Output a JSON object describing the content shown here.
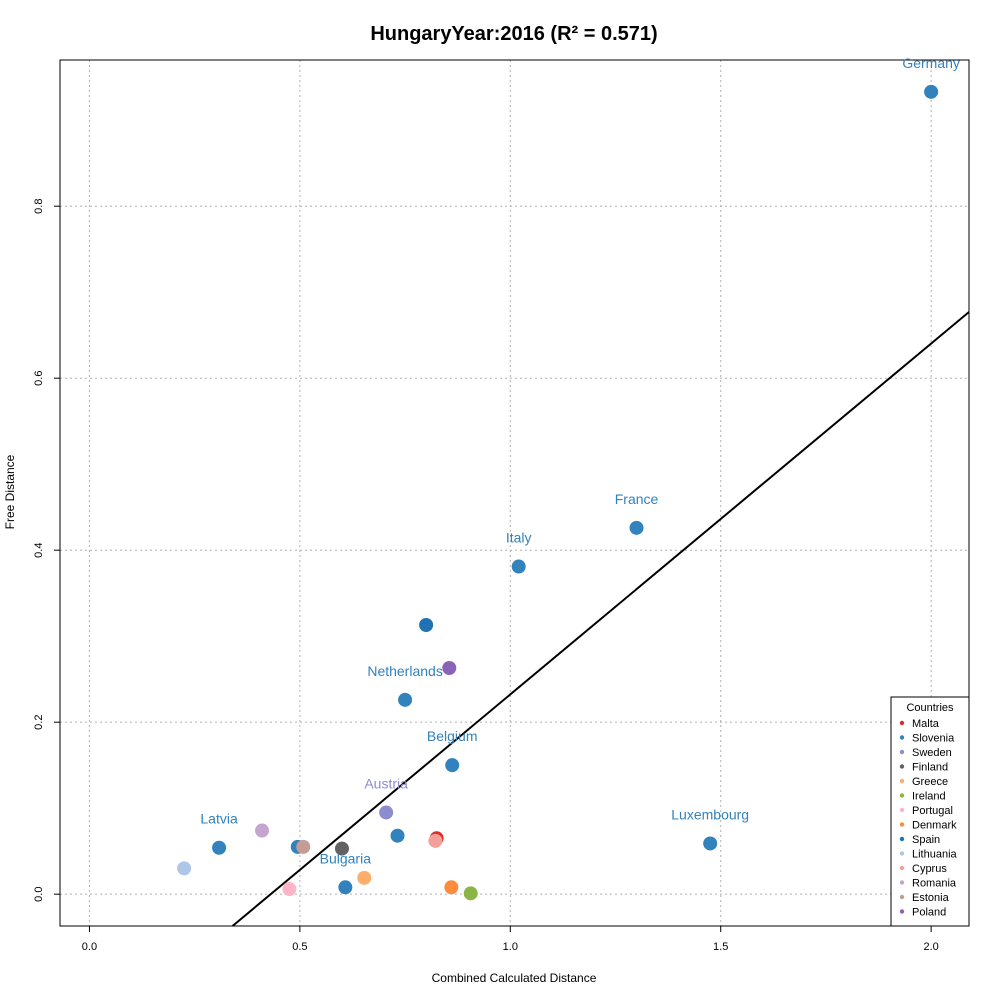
{
  "chart_data": {
    "type": "scatter",
    "title": "HungaryYear:2016 (R² = 0.571)",
    "xlabel": "Combined Calculated Distance",
    "ylabel": "Free Distance",
    "xlim": [
      -0.07,
      2.09
    ],
    "ylim": [
      -0.037,
      0.97
    ],
    "x_ticks": [
      0.0,
      0.5,
      1.0,
      1.5,
      2.0
    ],
    "x_tick_labels": [
      "0.0",
      "0.5",
      "1.0",
      "1.5",
      "2.0"
    ],
    "y_ticks": [
      0.0,
      0.2,
      0.4,
      0.6,
      0.8
    ],
    "y_tick_labels": [
      "0.0",
      "0.2",
      "0.4",
      "0.6",
      "0.8"
    ],
    "grid": true,
    "regression_line": {
      "x": [
        0.34,
        2.09
      ],
      "y": [
        -0.037,
        0.677
      ],
      "color": "#000000"
    },
    "points": [
      {
        "x": 2.0,
        "y": 0.933,
        "color": "#3182bd",
        "label": "Germany"
      },
      {
        "x": 1.3,
        "y": 0.426,
        "color": "#3182bd",
        "label": "France"
      },
      {
        "x": 1.02,
        "y": 0.381,
        "color": "#3182bd",
        "label": "Italy"
      },
      {
        "x": 0.8,
        "y": 0.313,
        "color": "#2171b5",
        "label": ""
      },
      {
        "x": 0.855,
        "y": 0.263,
        "color": "#8c62b8",
        "label": ""
      },
      {
        "x": 0.75,
        "y": 0.226,
        "color": "#3182bd",
        "label": "Netherlands"
      },
      {
        "x": 0.862,
        "y": 0.15,
        "color": "#3182bd",
        "label": "Belgium"
      },
      {
        "x": 1.475,
        "y": 0.059,
        "color": "#3182bd",
        "label": "Luxembourg"
      },
      {
        "x": 0.705,
        "y": 0.095,
        "color": "#8c8ccf",
        "label": "Austria"
      },
      {
        "x": 0.732,
        "y": 0.068,
        "color": "#3182bd",
        "label": ""
      },
      {
        "x": 0.825,
        "y": 0.065,
        "color": "#de2d26",
        "label": ""
      },
      {
        "x": 0.822,
        "y": 0.062,
        "color": "#f4a09a",
        "label": ""
      },
      {
        "x": 0.308,
        "y": 0.054,
        "color": "#3182bd",
        "label": "Latvia"
      },
      {
        "x": 0.41,
        "y": 0.074,
        "color": "#c5a5cf",
        "label": ""
      },
      {
        "x": 0.495,
        "y": 0.055,
        "color": "#3182bd",
        "label": ""
      },
      {
        "x": 0.508,
        "y": 0.055,
        "color": "#c49c94",
        "label": ""
      },
      {
        "x": 0.6,
        "y": 0.053,
        "color": "#636363",
        "label": ""
      },
      {
        "x": 0.608,
        "y": 0.008,
        "color": "#3182bd",
        "label": "Bulgaria"
      },
      {
        "x": 0.653,
        "y": 0.019,
        "color": "#fdae6b",
        "label": ""
      },
      {
        "x": 0.225,
        "y": 0.03,
        "color": "#aec7e8",
        "label": ""
      },
      {
        "x": 0.475,
        "y": 0.006,
        "color": "#ffb3c6",
        "label": ""
      },
      {
        "x": 0.86,
        "y": 0.008,
        "color": "#fd8d3c",
        "label": ""
      },
      {
        "x": 0.906,
        "y": 0.001,
        "color": "#8cb547",
        "label": ""
      }
    ],
    "legend": {
      "title": "Countries",
      "placement": "bottom-right",
      "entries": [
        {
          "name": "Malta",
          "color": "#de2d26"
        },
        {
          "name": "Slovenia",
          "color": "#3182bd"
        },
        {
          "name": "Sweden",
          "color": "#8c8ccf"
        },
        {
          "name": "Finland",
          "color": "#636363"
        },
        {
          "name": "Greece",
          "color": "#fdae6b"
        },
        {
          "name": "Ireland",
          "color": "#8cb547"
        },
        {
          "name": "Portugal",
          "color": "#ffb3c6"
        },
        {
          "name": "Denmark",
          "color": "#fd8d3c"
        },
        {
          "name": "Spain",
          "color": "#2171b5"
        },
        {
          "name": "Lithuania",
          "color": "#aec7e8"
        },
        {
          "name": "Cyprus",
          "color": "#f4a09a"
        },
        {
          "name": "Romania",
          "color": "#c5a5cf"
        },
        {
          "name": "Estonia",
          "color": "#c49c94"
        },
        {
          "name": "Poland",
          "color": "#8c62b8"
        }
      ]
    }
  }
}
